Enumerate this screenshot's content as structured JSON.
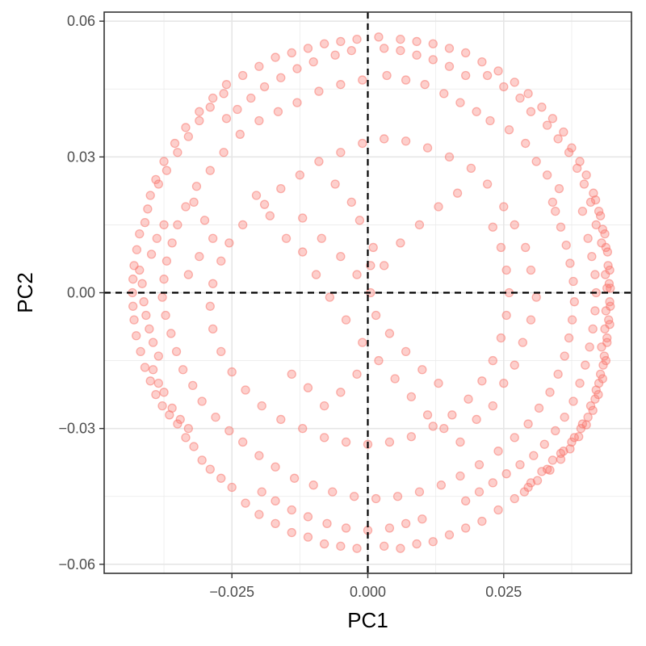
{
  "chart_data": {
    "type": "scatter",
    "xlabel": "PC1",
    "ylabel": "PC2",
    "xlim": [
      -0.0485,
      0.0485
    ],
    "ylim": [
      -0.062,
      0.062
    ],
    "x_ticks": [
      {
        "value": -0.025,
        "label": "−0.025"
      },
      {
        "value": 0.0,
        "label": "0.000"
      },
      {
        "value": 0.025,
        "label": "0.025"
      }
    ],
    "y_ticks": [
      {
        "value": -0.06,
        "label": "−0.06"
      },
      {
        "value": -0.03,
        "label": "−0.03"
      },
      {
        "value": 0.0,
        "label": "0.00"
      },
      {
        "value": 0.03,
        "label": "0.03"
      },
      {
        "value": 0.06,
        "label": "0.06"
      }
    ],
    "x_minor_ticks": [
      -0.0375,
      -0.0125,
      0.0125,
      0.0375
    ],
    "y_minor_ticks": [
      -0.045,
      -0.015,
      0.015,
      0.045
    ],
    "reference_lines": {
      "x": 0.0,
      "y": 0.0,
      "style": "dashed",
      "color": "#000000"
    },
    "grid": true,
    "point_color": "#f8766d",
    "point_fill": "#f8766d",
    "legend": "none",
    "description": "",
    "points": [
      [
        -0.0405,
        0.0185
      ],
      [
        -0.041,
        0.0155
      ],
      [
        -0.042,
        0.013
      ],
      [
        -0.0425,
        0.0095
      ],
      [
        -0.043,
        0.006
      ],
      [
        -0.0432,
        0.003
      ],
      [
        -0.0433,
        0.0
      ],
      [
        -0.0432,
        -0.003
      ],
      [
        -0.043,
        -0.006
      ],
      [
        -0.0426,
        -0.0095
      ],
      [
        -0.0418,
        -0.013
      ],
      [
        -0.041,
        -0.0165
      ],
      [
        -0.04,
        -0.0195
      ],
      [
        -0.039,
        -0.0225
      ],
      [
        -0.0378,
        -0.025
      ],
      [
        -0.0365,
        -0.027
      ],
      [
        -0.035,
        -0.029
      ],
      [
        -0.0335,
        -0.032
      ],
      [
        -0.032,
        -0.034
      ],
      [
        -0.0305,
        -0.037
      ],
      [
        -0.029,
        -0.039
      ],
      [
        -0.027,
        -0.041
      ],
      [
        -0.025,
        -0.043
      ],
      [
        -0.0225,
        -0.0465
      ],
      [
        -0.02,
        -0.049
      ],
      [
        -0.017,
        -0.051
      ],
      [
        -0.014,
        -0.053
      ],
      [
        -0.011,
        -0.054
      ],
      [
        -0.008,
        -0.0555
      ],
      [
        -0.005,
        -0.056
      ],
      [
        -0.002,
        -0.0565
      ],
      [
        0.003,
        -0.056
      ],
      [
        0.006,
        -0.0565
      ],
      [
        0.009,
        -0.0555
      ],
      [
        0.012,
        -0.055
      ],
      [
        0.015,
        -0.0535
      ],
      [
        0.018,
        -0.052
      ],
      [
        0.021,
        -0.0505
      ],
      [
        0.024,
        -0.048
      ],
      [
        0.027,
        -0.0455
      ],
      [
        0.03,
        -0.042
      ],
      [
        0.033,
        -0.039
      ],
      [
        0.0355,
        -0.0355
      ],
      [
        0.038,
        -0.032
      ],
      [
        0.0395,
        -0.029
      ],
      [
        0.041,
        -0.025
      ],
      [
        0.042,
        -0.0215
      ],
      [
        0.0428,
        -0.018
      ],
      [
        0.0435,
        -0.014
      ],
      [
        0.044,
        -0.01
      ],
      [
        0.0443,
        -0.006
      ],
      [
        0.0445,
        -0.002
      ],
      [
        0.0444,
        0.002
      ],
      [
        0.0442,
        0.006
      ],
      [
        0.0438,
        0.01
      ],
      [
        0.0432,
        0.014
      ],
      [
        0.0425,
        0.018
      ],
      [
        0.0415,
        0.022
      ],
      [
        0.0402,
        0.026
      ],
      [
        0.039,
        0.029
      ],
      [
        0.0375,
        0.032
      ],
      [
        0.036,
        0.0355
      ],
      [
        0.034,
        0.0385
      ],
      [
        0.032,
        0.041
      ],
      [
        0.0295,
        0.044
      ],
      [
        0.027,
        0.0465
      ],
      [
        0.024,
        0.049
      ],
      [
        0.021,
        0.051
      ],
      [
        0.018,
        0.053
      ],
      [
        0.015,
        0.054
      ],
      [
        0.012,
        0.055
      ],
      [
        0.009,
        0.0555
      ],
      [
        0.006,
        0.056
      ],
      [
        0.002,
        0.0565
      ],
      [
        -0.002,
        0.056
      ],
      [
        -0.005,
        0.0555
      ],
      [
        -0.008,
        0.055
      ],
      [
        -0.011,
        0.054
      ],
      [
        -0.014,
        0.053
      ],
      [
        -0.017,
        0.052
      ],
      [
        -0.02,
        0.05
      ],
      [
        -0.023,
        0.048
      ],
      [
        -0.026,
        0.046
      ],
      [
        -0.0285,
        0.043
      ],
      [
        -0.031,
        0.04
      ],
      [
        -0.0335,
        0.0365
      ],
      [
        -0.0355,
        0.033
      ],
      [
        -0.0375,
        0.029
      ],
      [
        -0.039,
        0.025
      ],
      [
        -0.04,
        0.0215
      ],
      [
        0.043,
        -0.012
      ],
      [
        0.0436,
        -0.008
      ],
      [
        0.0438,
        -0.004
      ],
      [
        0.044,
        0.001
      ],
      [
        0.0437,
        0.004
      ],
      [
        0.0433,
        -0.016
      ],
      [
        0.0425,
        -0.02
      ],
      [
        0.0418,
        -0.0235
      ],
      [
        0.043,
        0.011
      ],
      [
        0.042,
        0.015
      ],
      [
        0.041,
        0.02
      ],
      [
        0.0398,
        0.024
      ],
      [
        0.0385,
        0.0275
      ],
      [
        0.037,
        0.031
      ],
      [
        0.035,
        0.034
      ],
      [
        0.033,
        0.037
      ],
      [
        0.03,
        0.04
      ],
      [
        0.028,
        0.043
      ],
      [
        0.025,
        0.0455
      ],
      [
        0.022,
        0.048
      ],
      [
        0.0405,
        -0.0275
      ],
      [
        0.0392,
        -0.03
      ],
      [
        0.0375,
        -0.033
      ],
      [
        0.036,
        -0.035
      ],
      [
        0.034,
        -0.037
      ],
      [
        0.032,
        -0.0395
      ],
      [
        0.0295,
        -0.043
      ],
      [
        -0.0385,
        0.024
      ],
      [
        -0.037,
        0.027
      ],
      [
        -0.035,
        0.031
      ],
      [
        -0.033,
        0.0345
      ],
      [
        -0.031,
        0.038
      ],
      [
        -0.029,
        0.041
      ],
      [
        -0.0265,
        0.044
      ],
      [
        -0.0395,
        -0.017
      ],
      [
        -0.0385,
        -0.02
      ],
      [
        -0.0375,
        -0.022
      ],
      [
        -0.036,
        -0.0255
      ],
      [
        -0.0345,
        -0.028
      ],
      [
        -0.033,
        -0.03
      ],
      [
        0.0352,
        0.023
      ],
      [
        0.034,
        0.02
      ],
      [
        0.033,
        0.026
      ],
      [
        0.031,
        0.029
      ],
      [
        0.029,
        0.033
      ],
      [
        0.026,
        0.036
      ],
      [
        0.0225,
        0.038
      ],
      [
        0.02,
        0.04
      ],
      [
        0.017,
        0.042
      ],
      [
        0.014,
        0.044
      ],
      [
        0.0105,
        0.046
      ],
      [
        0.007,
        0.047
      ],
      [
        0.0035,
        0.048
      ],
      [
        -0.001,
        0.047
      ],
      [
        -0.005,
        0.046
      ],
      [
        -0.009,
        0.0445
      ],
      [
        -0.013,
        0.042
      ],
      [
        -0.0165,
        0.04
      ],
      [
        -0.02,
        0.038
      ],
      [
        -0.0235,
        0.035
      ],
      [
        -0.0265,
        0.031
      ],
      [
        -0.029,
        0.027
      ],
      [
        -0.0315,
        0.0235
      ],
      [
        -0.0335,
        0.019
      ],
      [
        -0.035,
        0.015
      ],
      [
        -0.036,
        0.011
      ],
      [
        -0.037,
        0.007
      ],
      [
        -0.0375,
        0.003
      ],
      [
        -0.0378,
        -0.001
      ],
      [
        -0.0372,
        -0.005
      ],
      [
        -0.0362,
        -0.009
      ],
      [
        -0.0352,
        -0.013
      ],
      [
        -0.034,
        -0.017
      ],
      [
        -0.0322,
        -0.0205
      ],
      [
        -0.0305,
        -0.024
      ],
      [
        -0.028,
        -0.0275
      ],
      [
        -0.0255,
        -0.0305
      ],
      [
        -0.023,
        -0.033
      ],
      [
        -0.02,
        -0.036
      ],
      [
        -0.017,
        -0.0385
      ],
      [
        -0.0135,
        -0.041
      ],
      [
        -0.01,
        -0.0425
      ],
      [
        -0.0065,
        -0.044
      ],
      [
        -0.0025,
        -0.045
      ],
      [
        0.0015,
        -0.0455
      ],
      [
        0.0055,
        -0.045
      ],
      [
        0.0095,
        -0.044
      ],
      [
        0.0135,
        -0.0425
      ],
      [
        0.017,
        -0.0405
      ],
      [
        0.0205,
        -0.038
      ],
      [
        0.024,
        -0.035
      ],
      [
        0.027,
        -0.032
      ],
      [
        0.0295,
        -0.029
      ],
      [
        0.0315,
        -0.0255
      ],
      [
        0.0335,
        -0.022
      ],
      [
        0.035,
        -0.018
      ],
      [
        0.0362,
        -0.014
      ],
      [
        0.037,
        -0.01
      ],
      [
        0.0376,
        -0.006
      ],
      [
        0.038,
        -0.002
      ],
      [
        0.0378,
        0.0025
      ],
      [
        0.0372,
        0.0065
      ],
      [
        0.0365,
        0.0105
      ],
      [
        0.0355,
        0.0145
      ],
      [
        0.0345,
        0.018
      ],
      [
        -0.0205,
        0.0215
      ],
      [
        -0.018,
        0.017
      ],
      [
        -0.015,
        0.012
      ],
      [
        -0.012,
        0.009
      ],
      [
        -0.0095,
        0.004
      ],
      [
        -0.007,
        -0.001
      ],
      [
        -0.004,
        -0.006
      ],
      [
        -0.001,
        -0.011
      ],
      [
        0.002,
        -0.015
      ],
      [
        0.005,
        -0.019
      ],
      [
        0.008,
        -0.023
      ],
      [
        0.011,
        -0.027
      ],
      [
        0.014,
        -0.03
      ],
      [
        0.017,
        -0.033
      ],
      [
        0.02,
        -0.028
      ],
      [
        0.023,
        -0.025
      ],
      [
        0.025,
        -0.02
      ],
      [
        0.027,
        -0.016
      ],
      [
        0.0285,
        -0.011
      ],
      [
        0.03,
        -0.006
      ],
      [
        0.031,
        -0.001
      ],
      [
        0.03,
        0.005
      ],
      [
        0.029,
        0.01
      ],
      [
        0.027,
        0.015
      ],
      [
        0.025,
        0.019
      ],
      [
        0.022,
        0.024
      ],
      [
        0.019,
        0.0275
      ],
      [
        0.015,
        0.03
      ],
      [
        0.011,
        0.032
      ],
      [
        0.007,
        0.0335
      ],
      [
        0.003,
        0.034
      ],
      [
        -0.001,
        0.033
      ],
      [
        -0.005,
        0.031
      ],
      [
        -0.009,
        0.029
      ],
      [
        -0.0125,
        0.026
      ],
      [
        -0.016,
        0.023
      ],
      [
        -0.019,
        0.0195
      ],
      [
        -0.023,
        0.015
      ],
      [
        -0.0255,
        0.011
      ],
      [
        -0.027,
        0.007
      ],
      [
        -0.0285,
        0.002
      ],
      [
        -0.029,
        -0.003
      ],
      [
        -0.0285,
        -0.008
      ],
      [
        -0.027,
        -0.013
      ],
      [
        -0.025,
        -0.0175
      ],
      [
        -0.0225,
        -0.0215
      ],
      [
        -0.0195,
        -0.025
      ],
      [
        -0.016,
        -0.028
      ],
      [
        -0.012,
        -0.03
      ],
      [
        -0.008,
        -0.032
      ],
      [
        -0.004,
        -0.033
      ],
      [
        0.0,
        -0.0335
      ],
      [
        0.004,
        -0.033
      ],
      [
        0.008,
        -0.0318
      ],
      [
        0.012,
        -0.0295
      ],
      [
        0.0155,
        -0.027
      ],
      [
        0.0185,
        -0.0235
      ],
      [
        0.021,
        -0.0195
      ],
      [
        0.023,
        -0.015
      ],
      [
        0.0245,
        -0.01
      ],
      [
        0.0255,
        -0.005
      ],
      [
        0.026,
        0.0
      ],
      [
        0.0255,
        0.005
      ],
      [
        0.0245,
        0.01
      ],
      [
        0.023,
        0.0145
      ],
      [
        -0.012,
        0.0165
      ],
      [
        -0.0085,
        0.012
      ],
      [
        -0.005,
        0.008
      ],
      [
        -0.002,
        0.004
      ],
      [
        0.0005,
        0.0
      ],
      [
        0.003,
        0.006
      ],
      [
        0.006,
        0.011
      ],
      [
        0.0095,
        0.015
      ],
      [
        0.013,
        0.019
      ],
      [
        0.0165,
        0.022
      ],
      [
        0.0005,
        0.006
      ],
      [
        0.001,
        0.01
      ],
      [
        -0.0015,
        0.016
      ],
      [
        -0.003,
        0.02
      ],
      [
        -0.006,
        0.024
      ],
      [
        0.0015,
        -0.005
      ],
      [
        0.004,
        -0.009
      ],
      [
        0.007,
        -0.013
      ],
      [
        0.01,
        -0.017
      ],
      [
        0.013,
        -0.02
      ],
      [
        -0.002,
        -0.018
      ],
      [
        -0.005,
        -0.022
      ],
      [
        -0.008,
        -0.025
      ],
      [
        -0.011,
        -0.021
      ],
      [
        -0.014,
        -0.018
      ],
      [
        -0.032,
        0.02
      ],
      [
        -0.03,
        0.016
      ],
      [
        -0.0285,
        0.012
      ],
      [
        -0.031,
        0.008
      ],
      [
        -0.033,
        0.004
      ],
      [
        0.0395,
        0.018
      ],
      [
        0.0405,
        0.012
      ],
      [
        0.0412,
        0.008
      ],
      [
        0.0418,
        0.004
      ],
      [
        0.042,
        0.0
      ],
      [
        0.0418,
        -0.004
      ],
      [
        0.0414,
        -0.008
      ],
      [
        0.0408,
        -0.012
      ],
      [
        0.04,
        -0.016
      ],
      [
        0.039,
        -0.02
      ],
      [
        0.0378,
        -0.024
      ],
      [
        0.0362,
        -0.0275
      ],
      [
        0.0345,
        -0.0305
      ],
      [
        0.0325,
        -0.0335
      ],
      [
        0.0305,
        -0.036
      ],
      [
        0.028,
        -0.038
      ],
      [
        0.0255,
        -0.04
      ],
      [
        0.023,
        -0.042
      ],
      [
        0.0205,
        -0.044
      ],
      [
        0.018,
        -0.046
      ],
      [
        -0.042,
        0.005
      ],
      [
        -0.0415,
        0.002
      ],
      [
        -0.0412,
        -0.002
      ],
      [
        -0.0408,
        -0.005
      ],
      [
        -0.0402,
        -0.008
      ],
      [
        -0.0395,
        -0.011
      ],
      [
        -0.0385,
        -0.014
      ],
      [
        -0.0375,
        0.015
      ],
      [
        -0.0388,
        0.012
      ],
      [
        -0.0398,
        0.0085
      ],
      [
        0.018,
        0.048
      ],
      [
        0.015,
        0.05
      ],
      [
        0.012,
        0.0515
      ],
      [
        0.009,
        0.0525
      ],
      [
        0.006,
        0.0535
      ],
      [
        0.003,
        0.054
      ],
      [
        -0.003,
        0.0535
      ],
      [
        -0.006,
        0.0525
      ],
      [
        -0.01,
        0.051
      ],
      [
        -0.013,
        0.0495
      ],
      [
        -0.016,
        0.0475
      ],
      [
        -0.019,
        0.0455
      ],
      [
        -0.0215,
        0.043
      ],
      [
        -0.024,
        0.0405
      ],
      [
        -0.026,
        0.0385
      ],
      [
        0.01,
        -0.05
      ],
      [
        0.007,
        -0.051
      ],
      [
        0.004,
        -0.052
      ],
      [
        0.0,
        -0.0525
      ],
      [
        -0.004,
        -0.052
      ],
      [
        -0.0075,
        -0.051
      ],
      [
        -0.011,
        -0.0495
      ],
      [
        -0.014,
        -0.048
      ],
      [
        -0.017,
        -0.046
      ],
      [
        -0.0195,
        -0.044
      ],
      [
        0.044,
        -0.011
      ],
      [
        0.0445,
        -0.007
      ],
      [
        0.0446,
        -0.003
      ],
      [
        0.0446,
        0.001
      ],
      [
        0.0445,
        0.005
      ],
      [
        0.0441,
        0.009
      ],
      [
        0.0436,
        0.013
      ],
      [
        0.0428,
        0.017
      ],
      [
        0.0419,
        0.0205
      ],
      [
        0.0438,
        -0.015
      ],
      [
        0.0432,
        -0.019
      ],
      [
        0.0424,
        -0.0225
      ],
      [
        0.0414,
        -0.026
      ],
      [
        0.0402,
        -0.0292
      ],
      [
        0.0388,
        -0.0318
      ],
      [
        0.0372,
        -0.0345
      ],
      [
        0.0355,
        -0.0368
      ],
      [
        0.0335,
        -0.0392
      ],
      [
        0.0312,
        -0.0415
      ],
      [
        0.0288,
        -0.044
      ]
    ]
  }
}
